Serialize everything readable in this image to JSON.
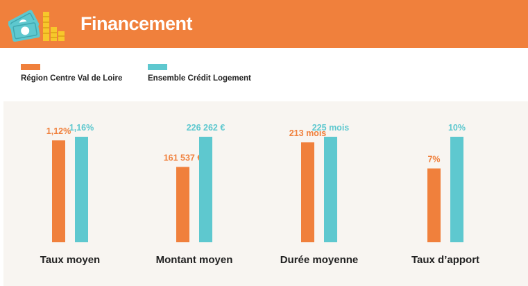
{
  "header": {
    "title": "Financement",
    "icon": "money-and-coins-icon",
    "colors": {
      "background": "#f0803c",
      "text": "#ffffff"
    }
  },
  "legend": [
    {
      "label": "Région Centre Val de Loire",
      "color": "#f0803c"
    },
    {
      "label": "Ensemble Crédit Logement",
      "color": "#5ec8cf"
    }
  ],
  "chart_data": {
    "type": "bar",
    "categories": [
      "Taux moyen",
      "Montant moyen",
      "Durée moyenne",
      "Taux d’apport"
    ],
    "series": [
      {
        "name": "Région Centre Val de Loire",
        "color": "#f0803c",
        "values": [
          1.12,
          161537,
          213,
          7
        ],
        "labels": [
          "1,12%",
          "161 537 €",
          "213 mois",
          "7%"
        ]
      },
      {
        "name": "Ensemble Crédit Logement",
        "color": "#5ec8cf",
        "values": [
          1.16,
          226262,
          225,
          10
        ],
        "labels": [
          "1,16%",
          "226 262 €",
          "225 mois",
          "10%"
        ]
      }
    ],
    "grid": false,
    "legend_position": "top-left",
    "ylabel": ""
  }
}
